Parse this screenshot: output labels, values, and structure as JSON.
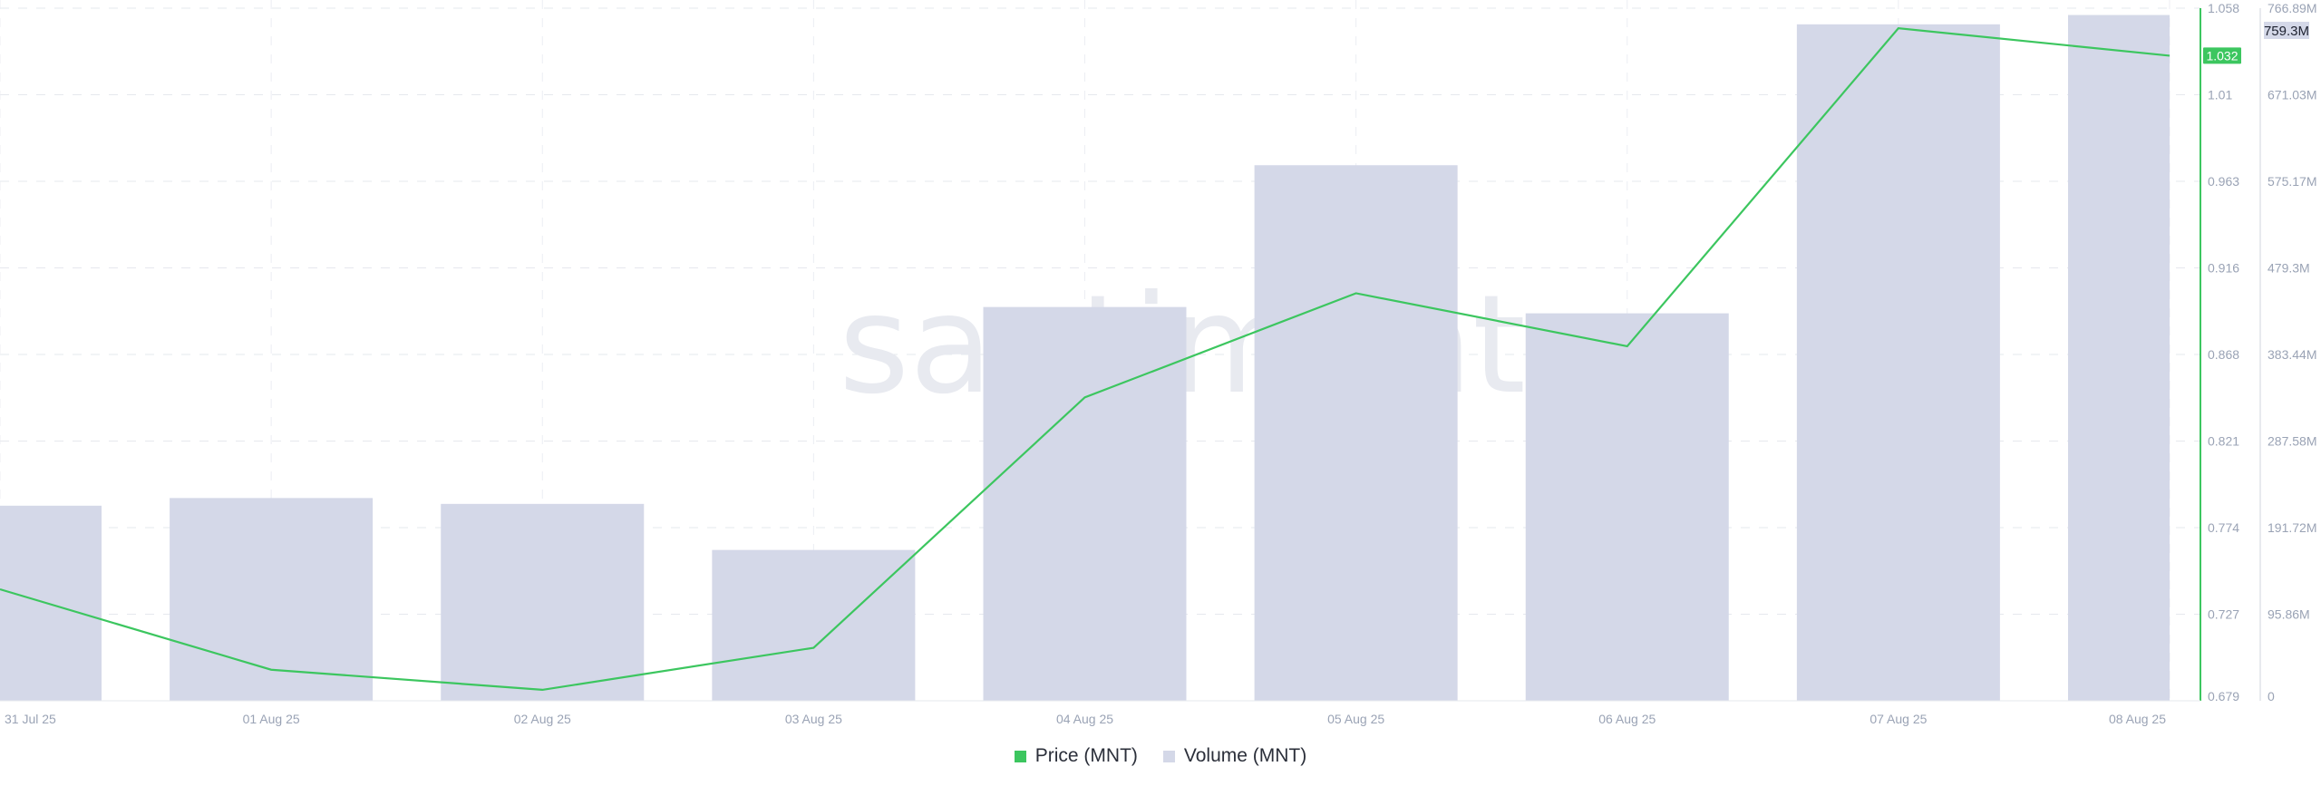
{
  "watermark": "santiment",
  "chart_data": {
    "type": "bar+line",
    "categories": [
      "31 Jul 25",
      "01 Aug 25",
      "02 Aug 25",
      "03 Aug 25",
      "04 Aug 25",
      "05 Aug 25",
      "06 Aug 25",
      "07 Aug 25",
      "08 Aug 25"
    ],
    "series": [
      {
        "name": "Price (MNT)",
        "type": "line",
        "axis": "left-inner",
        "color": "#3cc65f",
        "values": [
          0.74,
          0.696,
          0.685,
          0.708,
          0.845,
          0.902,
          0.873,
          1.047,
          1.032
        ]
      },
      {
        "name": "Volume (MNT)",
        "type": "bar",
        "axis": "right",
        "color": "#d4d8e8",
        "values": [
          216000000,
          224500000,
          218000000,
          167000000,
          436000000,
          593000000,
          429000000,
          749000000,
          759300000
        ]
      }
    ],
    "price_axis": {
      "ylim": [
        0.679,
        1.058
      ],
      "ticks": [
        "1.058",
        "1.01",
        "0.963",
        "0.916",
        "0.868",
        "0.821",
        "0.774",
        "0.727",
        "0.679"
      ]
    },
    "volume_axis": {
      "ylim": [
        0,
        766890000
      ],
      "ticks": [
        "766.89M",
        "671.03M",
        "575.17M",
        "479.3M",
        "383.44M",
        "287.58M",
        "191.72M",
        "95.86M",
        "0"
      ]
    },
    "last_price_label": "1.032",
    "last_volume_label": "759.3M",
    "grid": true,
    "legend": "bottom-center"
  }
}
